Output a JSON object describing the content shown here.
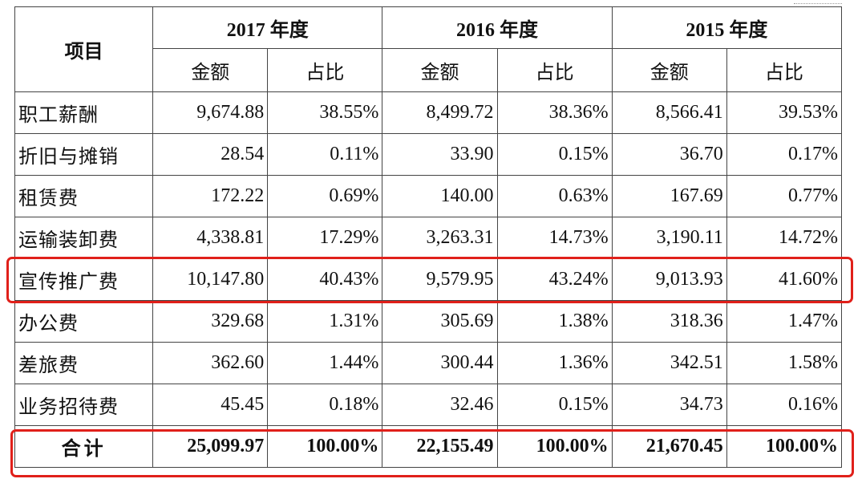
{
  "table": {
    "header": {
      "item_label": "项目",
      "years": [
        "2017 年度",
        "2016 年度",
        "2015 年度"
      ],
      "amount_label": "金额",
      "ratio_label": "占比"
    },
    "rows": [
      {
        "label": "职工薪酬",
        "values": [
          "9,674.88",
          "38.55%",
          "8,499.72",
          "38.36%",
          "8,566.41",
          "39.53%"
        ]
      },
      {
        "label": "折旧与摊销",
        "values": [
          "28.54",
          "0.11%",
          "33.90",
          "0.15%",
          "36.70",
          "0.17%"
        ]
      },
      {
        "label": "租赁费",
        "values": [
          "172.22",
          "0.69%",
          "140.00",
          "0.63%",
          "167.69",
          "0.77%"
        ]
      },
      {
        "label": "运输装卸费",
        "values": [
          "4,338.81",
          "17.29%",
          "3,263.31",
          "14.73%",
          "3,190.11",
          "14.72%"
        ]
      },
      {
        "label": "宣传推广费",
        "values": [
          "10,147.80",
          "40.43%",
          "9,579.95",
          "43.24%",
          "9,013.93",
          "41.60%"
        ]
      },
      {
        "label": "办公费",
        "values": [
          "329.68",
          "1.31%",
          "305.69",
          "1.38%",
          "318.36",
          "1.47%"
        ]
      },
      {
        "label": "差旅费",
        "values": [
          "362.60",
          "1.44%",
          "300.44",
          "1.36%",
          "342.51",
          "1.58%"
        ]
      },
      {
        "label": "业务招待费",
        "values": [
          "45.45",
          "0.18%",
          "32.46",
          "0.15%",
          "34.73",
          "0.16%"
        ]
      }
    ],
    "total": {
      "label": "合计",
      "values": [
        "25,099.97",
        "100.00%",
        "22,155.49",
        "100.00%",
        "21,670.45",
        "100.00%"
      ]
    }
  },
  "highlight_color": "#e0201a"
}
